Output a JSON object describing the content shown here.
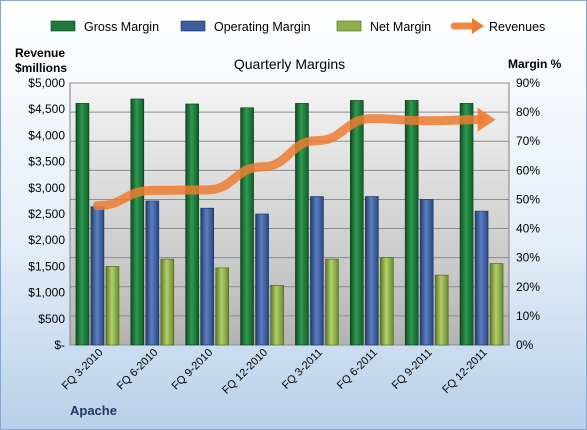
{
  "chart_data": {
    "type": "bar",
    "title": "Quarterly Margins",
    "company": "Apache",
    "y_left_label": [
      "Revenue",
      "$millions"
    ],
    "y_right_label": "Margin %",
    "y_left_range": [
      0,
      5000
    ],
    "y_right_range": [
      0,
      90
    ],
    "y_left_ticks": [
      "$-",
      "$500",
      "$1,000",
      "$1,500",
      "$2,000",
      "$2,500",
      "$3,000",
      "$3,500",
      "$4,000",
      "$4,500",
      "$5,000"
    ],
    "y_right_ticks": [
      "0%",
      "10%",
      "20%",
      "30%",
      "40%",
      "50%",
      "60%",
      "70%",
      "80%",
      "90%"
    ],
    "categories": [
      "FQ 3-2010",
      "FQ 6-2010",
      "FQ 9-2010",
      "FQ 12-2010",
      "FQ 3-2011",
      "FQ 6-2011",
      "FQ 9-2011",
      "FQ 12-2011"
    ],
    "grid": true,
    "legend_position": "top",
    "series": [
      {
        "name": "Gross Margin",
        "axis": "right",
        "kind": "bar",
        "color": "#1e7a3c",
        "values": [
          83,
          84.5,
          82.8,
          81.5,
          83,
          84,
          84,
          83
        ]
      },
      {
        "name": "Operating Margin",
        "axis": "right",
        "kind": "bar",
        "color": "#3c5fa0",
        "values": [
          47.5,
          49.5,
          47,
          45,
          51,
          51,
          50,
          46
        ]
      },
      {
        "name": "Net Margin",
        "axis": "right",
        "kind": "bar",
        "color": "#8fb04a",
        "values": [
          27,
          29.5,
          26.5,
          20.5,
          29.5,
          30,
          24,
          28
        ]
      },
      {
        "name": "Revenues",
        "axis": "left",
        "kind": "line",
        "color": "#ed7d31",
        "values": [
          2660,
          2950,
          2960,
          3400,
          3900,
          4320,
          4280,
          4300
        ]
      }
    ]
  }
}
